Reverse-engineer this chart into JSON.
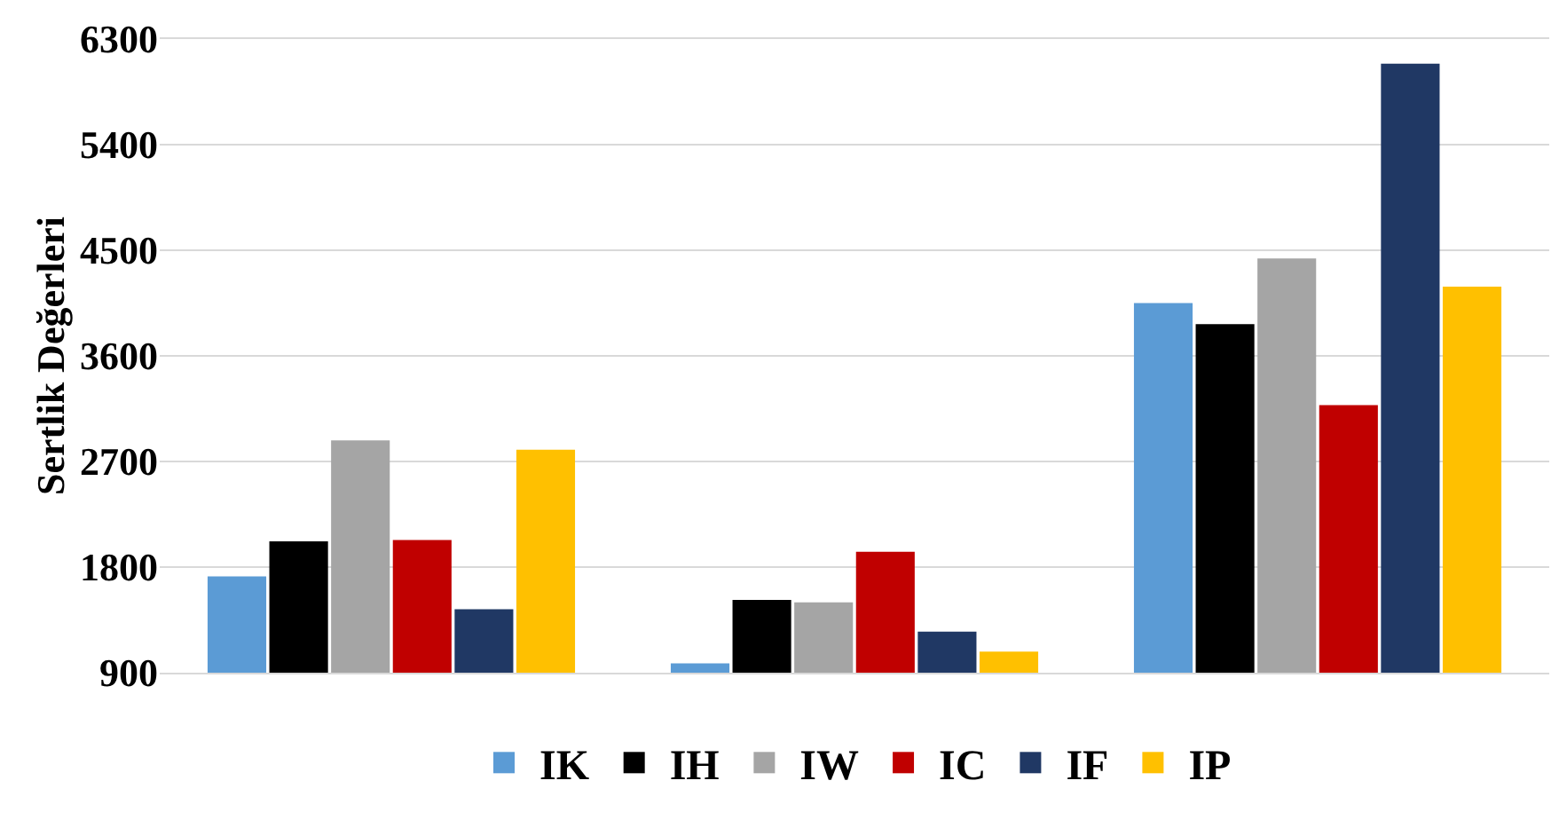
{
  "chart_data": {
    "type": "bar",
    "ylabel": "Sertlik Değerleri",
    "categories": [
      null,
      null,
      null
    ],
    "series": [
      {
        "name": "IK",
        "color": "#5b9bd5",
        "values": [
          1720,
          980,
          4050
        ]
      },
      {
        "name": "IH",
        "color": "#000000",
        "values": [
          2020,
          1520,
          3870
        ]
      },
      {
        "name": "IW",
        "color": "#a5a5a5",
        "values": [
          2880,
          1500,
          4430
        ]
      },
      {
        "name": "IC",
        "color": "#c00000",
        "values": [
          2030,
          1930,
          3180
        ]
      },
      {
        "name": "IF",
        "color": "#203864",
        "values": [
          1440,
          1250,
          6090
        ]
      },
      {
        "name": "IP",
        "color": "#ffc000",
        "values": [
          2800,
          1080,
          4190
        ]
      }
    ],
    "ylim": [
      900,
      6300
    ],
    "yticks": [
      900,
      1800,
      2700,
      3600,
      4500,
      5400,
      6300
    ],
    "grid": "y",
    "legend": "bottom"
  }
}
